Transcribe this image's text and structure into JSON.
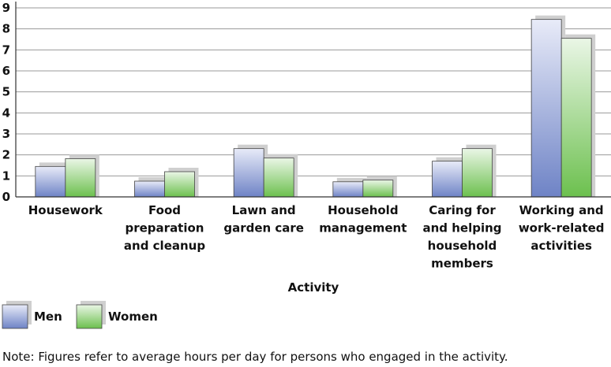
{
  "chart_data": {
    "type": "bar",
    "categories": [
      [
        "Housework"
      ],
      [
        "Food",
        "preparation",
        "and cleanup"
      ],
      [
        "Lawn and",
        "garden care"
      ],
      [
        "Household",
        "management"
      ],
      [
        "Caring for",
        "and helping",
        "household",
        "members"
      ],
      [
        "Working and",
        "work-related",
        "activities"
      ]
    ],
    "series": [
      {
        "name": "Men",
        "values": [
          1.45,
          0.75,
          2.3,
          0.72,
          1.7,
          8.45
        ],
        "color_top": "#e8ebf8",
        "color_bottom": "#6e83c6"
      },
      {
        "name": "Women",
        "values": [
          1.82,
          1.2,
          1.85,
          0.8,
          2.3,
          7.55
        ],
        "color_top": "#eaf6e6",
        "color_bottom": "#6cc04e"
      }
    ],
    "y_ticks": [
      "0",
      "1",
      "2",
      "3",
      "4",
      "5",
      "6",
      "7",
      "8",
      "9"
    ],
    "ylim": [
      0,
      9
    ],
    "xlabel": "Activity",
    "ylabel": "",
    "grid": true,
    "legend_position": "bottom-left"
  },
  "note": "Note: Figures refer to average hours per day for persons who engaged in the activity."
}
